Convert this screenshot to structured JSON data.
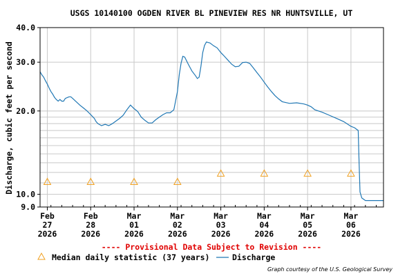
{
  "chart_data": {
    "type": "line",
    "title": "USGS 10140100 OGDEN RIVER BL PINEVIEW RES NR HUNTSVILLE, UT",
    "ylabel": "Discharge, cubic feet per second",
    "y_scale": "log",
    "ylim": [
      9.0,
      40.0
    ],
    "y_ticks": [
      "9.0",
      "10.0",
      "20.0",
      "30.0",
      "40.0"
    ],
    "y_tick_values": [
      9,
      10,
      20,
      30,
      40
    ],
    "xlim": [
      "2026-02-26T20:00",
      "2026-03-06T18:00"
    ],
    "x_ticks": [
      {
        "date": "2026-02-27",
        "month": "Feb",
        "day": "27",
        "year": "2026"
      },
      {
        "date": "2026-02-28",
        "month": "Feb",
        "day": "28",
        "year": "2026"
      },
      {
        "date": "2026-03-01",
        "month": "Mar",
        "day": "01",
        "year": "2026"
      },
      {
        "date": "2026-03-02",
        "month": "Mar",
        "day": "02",
        "year": "2026"
      },
      {
        "date": "2026-03-03",
        "month": "Mar",
        "day": "03",
        "year": "2026"
      },
      {
        "date": "2026-03-04",
        "month": "Mar",
        "day": "04",
        "year": "2026"
      },
      {
        "date": "2026-03-05",
        "month": "Mar",
        "day": "05",
        "year": "2026"
      },
      {
        "date": "2026-03-06",
        "month": "Mar",
        "day": "06",
        "year": "2026"
      }
    ],
    "grid": true,
    "series": [
      {
        "name": "Discharge",
        "color": "#1f77b4",
        "points": [
          [
            "2026-02-26T20:00",
            27.7
          ],
          [
            "2026-02-26T21:00",
            27.0
          ],
          [
            "2026-02-26T22:00",
            26.5
          ],
          [
            "2026-02-26T23:00",
            25.7
          ],
          [
            "2026-02-27T00:00",
            25.0
          ],
          [
            "2026-02-27T01:00",
            24.2
          ],
          [
            "2026-02-27T02:00",
            23.5
          ],
          [
            "2026-02-27T03:00",
            23.0
          ],
          [
            "2026-02-27T04:00",
            22.4
          ],
          [
            "2026-02-27T05:00",
            22.0
          ],
          [
            "2026-02-27T06:00",
            21.7
          ],
          [
            "2026-02-27T07:00",
            22.0
          ],
          [
            "2026-02-27T08:00",
            21.7
          ],
          [
            "2026-02-27T09:00",
            21.7
          ],
          [
            "2026-02-27T10:00",
            22.2
          ],
          [
            "2026-02-27T12:00",
            22.5
          ],
          [
            "2026-02-27T13:00",
            22.5
          ],
          [
            "2026-02-27T14:00",
            22.2
          ],
          [
            "2026-02-27T16:00",
            21.6
          ],
          [
            "2026-02-27T18:00",
            21.0
          ],
          [
            "2026-02-27T20:00",
            20.5
          ],
          [
            "2026-02-27T22:00",
            20.0
          ],
          [
            "2026-02-28T00:00",
            19.4
          ],
          [
            "2026-02-28T02:00",
            18.8
          ],
          [
            "2026-02-28T03:00",
            18.3
          ],
          [
            "2026-02-28T04:00",
            18.0
          ],
          [
            "2026-02-28T06:00",
            17.7
          ],
          [
            "2026-02-28T08:00",
            17.9
          ],
          [
            "2026-02-28T10:00",
            17.7
          ],
          [
            "2026-02-28T12:00",
            18.0
          ],
          [
            "2026-02-28T14:00",
            18.4
          ],
          [
            "2026-02-28T16:00",
            18.8
          ],
          [
            "2026-02-28T18:00",
            19.3
          ],
          [
            "2026-02-28T20:00",
            20.2
          ],
          [
            "2026-02-28T22:00",
            21.0
          ],
          [
            "2026-03-01T00:00",
            20.4
          ],
          [
            "2026-03-01T02:00",
            19.9
          ],
          [
            "2026-03-01T04:00",
            19.0
          ],
          [
            "2026-03-01T06:00",
            18.5
          ],
          [
            "2026-03-01T08:00",
            18.1
          ],
          [
            "2026-03-01T10:00",
            18.1
          ],
          [
            "2026-03-01T12:00",
            18.6
          ],
          [
            "2026-03-01T14:00",
            19.0
          ],
          [
            "2026-03-01T16:00",
            19.4
          ],
          [
            "2026-03-01T18:00",
            19.7
          ],
          [
            "2026-03-01T20:00",
            19.7
          ],
          [
            "2026-03-01T22:00",
            20.2
          ],
          [
            "2026-03-02T00:00",
            23.5
          ],
          [
            "2026-03-02T01:00",
            27.0
          ],
          [
            "2026-03-02T02:00",
            29.7
          ],
          [
            "2026-03-02T03:00",
            31.5
          ],
          [
            "2026-03-02T04:00",
            31.3
          ],
          [
            "2026-03-02T06:00",
            29.5
          ],
          [
            "2026-03-02T08:00",
            27.9
          ],
          [
            "2026-03-02T10:00",
            26.8
          ],
          [
            "2026-03-02T11:00",
            26.2
          ],
          [
            "2026-03-02T12:00",
            26.5
          ],
          [
            "2026-03-02T13:00",
            29.0
          ],
          [
            "2026-03-02T14:00",
            32.5
          ],
          [
            "2026-03-02T15:00",
            34.5
          ],
          [
            "2026-03-02T16:00",
            35.5
          ],
          [
            "2026-03-02T18:00",
            35.2
          ],
          [
            "2026-03-02T20:00",
            34.4
          ],
          [
            "2026-03-02T22:00",
            33.8
          ],
          [
            "2026-03-03T00:00",
            32.5
          ],
          [
            "2026-03-03T02:00",
            31.5
          ],
          [
            "2026-03-03T04:00",
            30.5
          ],
          [
            "2026-03-03T06:00",
            29.5
          ],
          [
            "2026-03-03T08:00",
            28.9
          ],
          [
            "2026-03-03T10:00",
            29.0
          ],
          [
            "2026-03-03T12:00",
            29.9
          ],
          [
            "2026-03-03T14:00",
            30.0
          ],
          [
            "2026-03-03T16:00",
            29.7
          ],
          [
            "2026-03-03T18:00",
            28.6
          ],
          [
            "2026-03-03T20:00",
            27.5
          ],
          [
            "2026-03-03T22:00",
            26.5
          ],
          [
            "2026-03-04T00:00",
            25.4
          ],
          [
            "2026-03-04T02:00",
            24.4
          ],
          [
            "2026-03-04T04:00",
            23.5
          ],
          [
            "2026-03-04T06:00",
            22.7
          ],
          [
            "2026-03-04T08:00",
            22.1
          ],
          [
            "2026-03-04T10:00",
            21.6
          ],
          [
            "2026-03-04T14:00",
            21.3
          ],
          [
            "2026-03-04T18:00",
            21.4
          ],
          [
            "2026-03-04T22:00",
            21.2
          ],
          [
            "2026-03-05T00:00",
            21.0
          ],
          [
            "2026-03-05T02:00",
            20.7
          ],
          [
            "2026-03-05T04:00",
            20.2
          ],
          [
            "2026-03-05T08:00",
            19.8
          ],
          [
            "2026-03-05T12:00",
            19.3
          ],
          [
            "2026-03-05T16:00",
            18.8
          ],
          [
            "2026-03-05T20:00",
            18.3
          ],
          [
            "2026-03-06T00:00",
            17.6
          ],
          [
            "2026-03-06T02:00",
            17.4
          ],
          [
            "2026-03-06T04:00",
            17.0
          ],
          [
            "2026-03-06T04:30",
            13.0
          ],
          [
            "2026-03-06T05:00",
            10.2
          ],
          [
            "2026-03-06T06:00",
            9.7
          ],
          [
            "2026-03-06T08:00",
            9.5
          ],
          [
            "2026-03-06T18:00",
            9.5
          ]
        ]
      },
      {
        "name": "Median daily statistic (37 years)",
        "color": "#f0a020",
        "marker": "triangle",
        "points": [
          [
            "2026-02-27T00:00",
            11.1
          ],
          [
            "2026-02-28T00:00",
            11.1
          ],
          [
            "2026-03-01T00:00",
            11.1
          ],
          [
            "2026-03-02T00:00",
            11.1
          ],
          [
            "2026-03-03T00:00",
            11.9
          ],
          [
            "2026-03-04T00:00",
            11.9
          ],
          [
            "2026-03-05T00:00",
            11.9
          ],
          [
            "2026-03-06T00:00",
            11.9
          ]
        ]
      }
    ]
  },
  "provisional_note": "---- Provisional Data Subject to Revision ----",
  "legend": {
    "median_label": "Median daily statistic (37 years)",
    "discharge_label": "Discharge"
  },
  "credit": "Graph courtesy of the U.S. Geological Survey"
}
